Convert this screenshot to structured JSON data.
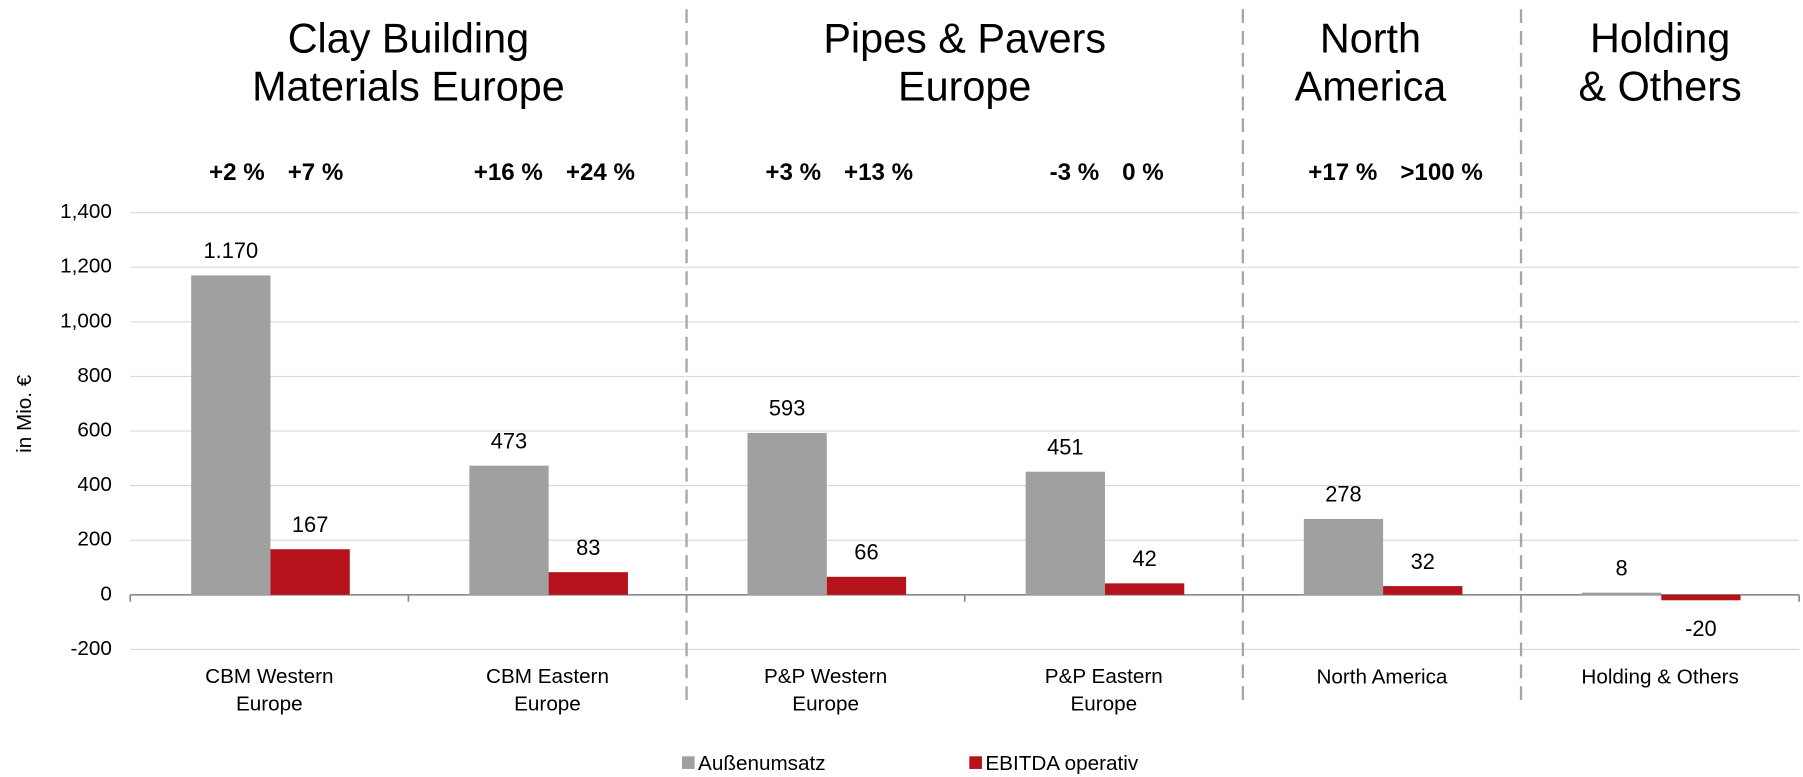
{
  "chart_data": {
    "type": "bar",
    "y_label": "in Mio. €",
    "groups": [
      "Clay Building\nMaterials Europe",
      "Pipes & Pavers\nEurope",
      "North\nAmerica",
      "Holding\n& Others"
    ],
    "categories": [
      "CBM Western\nEurope",
      "CBM Eastern\nEurope",
      "P&P Western\nEurope",
      "P&P Eastern\nEurope",
      "North America",
      "Holding & Others"
    ],
    "series": [
      {
        "name": "Außenumsatz",
        "color": "#a0a0a0",
        "values": [
          1170,
          473,
          593,
          451,
          278,
          8
        ],
        "value_labels": [
          "1.170",
          "473",
          "593",
          "451",
          "278",
          "8"
        ],
        "growth": [
          "+2 %",
          "+16 %",
          "+3 %",
          "-3 %",
          "+17 %",
          null
        ],
        "growth_color": "#8c8c8c"
      },
      {
        "name": "EBITDA operativ",
        "color": "#b5121b",
        "values": [
          167,
          83,
          66,
          42,
          32,
          -20
        ],
        "growth": [
          "+7 %",
          "+24 %",
          "+13 %",
          "0 %",
          ">100 %",
          null
        ],
        "growth_color": "#b5121b"
      }
    ],
    "ylim": [
      -200,
      1400
    ],
    "yticks": [
      -200,
      0,
      200,
      400,
      600,
      800,
      {
        "value": 1000,
        "label": "1,000"
      },
      {
        "value": 1200,
        "label": "1,200"
      },
      {
        "value": 1400,
        "label": "1,400"
      }
    ],
    "grid": true,
    "legend": "bottom"
  }
}
